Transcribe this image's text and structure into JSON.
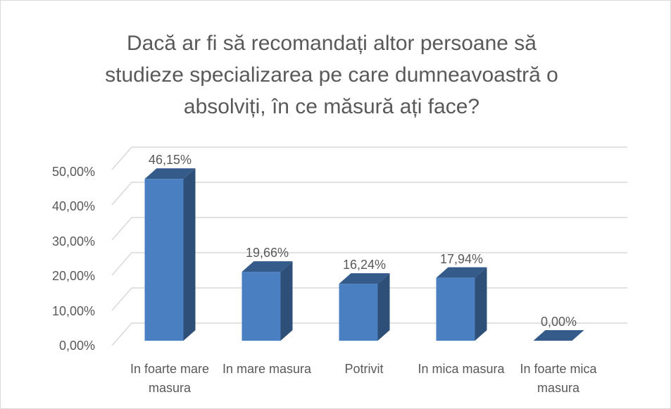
{
  "chart_data": {
    "type": "bar3d",
    "title": "Dacă ar fi să recomandați altor persoane să studieze specializarea pe care dumneavoastră o absolviți, în ce măsură ați face?",
    "categories": [
      "In foarte mare masura",
      "In mare masura",
      "Potrivit",
      "In mica masura",
      "In foarte mica masura"
    ],
    "values": [
      46.15,
      19.66,
      16.24,
      17.94,
      0
    ],
    "value_labels": [
      "46,15%",
      "19,66%",
      "16,24%",
      "17,94%",
      "0,00%"
    ],
    "color": "#4a7fc1",
    "ylim": [
      0,
      50
    ],
    "yticks": [
      {
        "value": 0,
        "label": "0,00%"
      },
      {
        "value": 10,
        "label": "10,00%"
      },
      {
        "value": 20,
        "label": "20,00%"
      },
      {
        "value": 30,
        "label": "30,00%"
      },
      {
        "value": 40,
        "label": "40,00%"
      },
      {
        "value": 50,
        "label": "50,00%"
      }
    ],
    "grid": true
  }
}
